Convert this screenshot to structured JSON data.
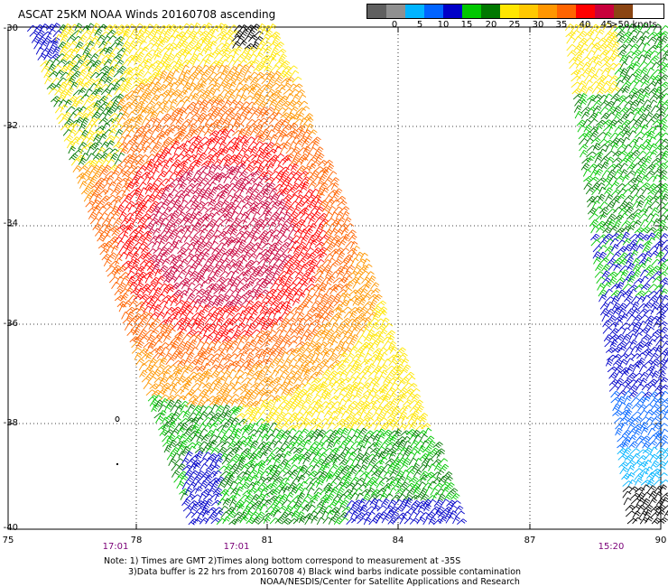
{
  "title": "ASCAT 25KM NOAA Winds 20160708 ascending",
  "legend": {
    "colors": [
      "#606060",
      "#909090",
      "#00b4ff",
      "#0064ff",
      "#0000c8",
      "#00c800",
      "#007800",
      "#ffe600",
      "#ffc800",
      "#ff9600",
      "#ff6400",
      "#ff0000",
      "#c8003c",
      "#8b4513",
      "#c8b4b4",
      "#b400ff",
      "#780096",
      "#000000"
    ],
    "labels": [
      "0",
      "5",
      "10",
      "15",
      "20",
      "25",
      "30",
      "35",
      "40",
      "45",
      ">50 knots"
    ]
  },
  "latitude_labels": [
    "-30",
    "-32",
    "-34",
    "-36",
    "-38",
    "-40"
  ],
  "longitude_labels": [
    "75",
    "78",
    "81",
    "84",
    "87",
    "90"
  ],
  "time_labels": [
    "17:01",
    "17:01",
    "15:20"
  ],
  "notes": [
    "Note: 1) Times are GMT 2)Times along bottom correspond to measurement at -35S",
    "3)Data buffer is 22 hrs from 20160708 4) Black wind barbs indicate possible contamination",
    "NOAA/NESDIS/Center for Satellite Applications and Research"
  ]
}
